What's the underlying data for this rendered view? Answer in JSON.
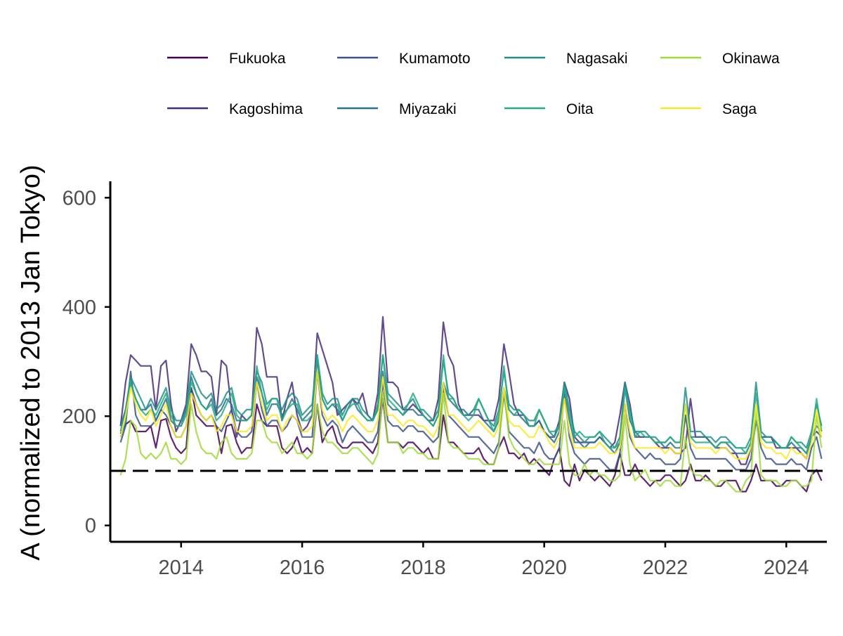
{
  "chart_data": {
    "type": "line",
    "title": "",
    "xlabel": "",
    "ylabel": "A (normalized to 2013 Jan Tokyo)",
    "x_start": "2013-01",
    "x_ticks": [
      2014,
      2016,
      2018,
      2020,
      2022,
      2024
    ],
    "y_ticks": [
      0,
      200,
      400,
      600
    ],
    "xlim": [
      2012.83,
      2024.67
    ],
    "ylim": [
      -30,
      630
    ],
    "reference_line": {
      "y": 100,
      "style": "dashed"
    },
    "legend_position": "top",
    "grid": false,
    "series": [
      {
        "name": "Fukuoka",
        "color": "#440154",
        "values": [
          168,
          185,
          192,
          172,
          172,
          172,
          182,
          142,
          192,
          195,
          162,
          142,
          132,
          142,
          252,
          202,
          192,
          182,
          182,
          182,
          132,
          182,
          185,
          152,
          132,
          142,
          142,
          222,
          192,
          182,
          182,
          182,
          142,
          132,
          142,
          162,
          132,
          142,
          132,
          222,
          152,
          172,
          182,
          152,
          142,
          142,
          152,
          152,
          152,
          142,
          132,
          152,
          232,
          152,
          152,
          152,
          142,
          152,
          152,
          142,
          132,
          142,
          122,
          122,
          202,
          152,
          152,
          142,
          132,
          132,
          132,
          142,
          122,
          112,
          112,
          142,
          162,
          132,
          132,
          122,
          132,
          112,
          122,
          112,
          102,
          92,
          122,
          142,
          82,
          72,
          112,
          82,
          102,
          92,
          82,
          92,
          82,
          72,
          92,
          132,
          92,
          92,
          112,
          92,
          82,
          72,
          82,
          82,
          92,
          92,
          82,
          72,
          82,
          112,
          82,
          82,
          92,
          82,
          72,
          72,
          82,
          82,
          82,
          62,
          62,
          82,
          112,
          82,
          82,
          82,
          72,
          72,
          82,
          82,
          82,
          72,
          62,
          92,
          102,
          82
        ]
      },
      {
        "name": "Kagoshima",
        "color": "#472D7B",
        "values": [
          182,
          262,
          312,
          302,
          292,
          292,
          292,
          212,
          292,
          302,
          222,
          172,
          192,
          222,
          332,
          312,
          282,
          282,
          272,
          202,
          302,
          292,
          212,
          162,
          202,
          192,
          202,
          362,
          332,
          272,
          272,
          272,
          192,
          232,
          262,
          202,
          172,
          182,
          202,
          352,
          322,
          292,
          262,
          202,
          212,
          222,
          232,
          222,
          242,
          202,
          192,
          242,
          382,
          262,
          262,
          252,
          212,
          212,
          222,
          212,
          202,
          192,
          192,
          232,
          372,
          312,
          292,
          222,
          202,
          202,
          202,
          202,
          192,
          192,
          192,
          232,
          332,
          282,
          222,
          202,
          202,
          182,
          182,
          192,
          172,
          162,
          162,
          192,
          262,
          232,
          162,
          152,
          152,
          152,
          152,
          162,
          152,
          142,
          152,
          202,
          262,
          222,
          162,
          162,
          162,
          162,
          152,
          142,
          142,
          142,
          132,
          132,
          142,
          232,
          162,
          162,
          162,
          152,
          142,
          142,
          142,
          132,
          132,
          112,
          112,
          142,
          192,
          162,
          162,
          162,
          142,
          142,
          142,
          142,
          142,
          132,
          122,
          162,
          172,
          162
        ]
      },
      {
        "name": "Kumamoto",
        "color": "#3B528B",
        "values": [
          152,
          182,
          282,
          202,
          182,
          182,
          182,
          192,
          212,
          202,
          182,
          162,
          162,
          182,
          252,
          222,
          202,
          192,
          202,
          182,
          172,
          192,
          212,
          172,
          162,
          162,
          172,
          262,
          212,
          182,
          192,
          192,
          172,
          182,
          202,
          192,
          162,
          162,
          162,
          282,
          202,
          182,
          192,
          182,
          152,
          172,
          182,
          172,
          162,
          152,
          152,
          172,
          262,
          192,
          182,
          182,
          172,
          182,
          182,
          172,
          172,
          162,
          152,
          162,
          252,
          202,
          192,
          182,
          172,
          162,
          162,
          162,
          152,
          142,
          132,
          152,
          242,
          172,
          162,
          152,
          142,
          142,
          132,
          152,
          132,
          122,
          122,
          142,
          242,
          162,
          132,
          122,
          112,
          122,
          122,
          122,
          112,
          102,
          102,
          132,
          222,
          162,
          142,
          132,
          122,
          132,
          122,
          122,
          112,
          112,
          112,
          122,
          202,
          142,
          122,
          122,
          122,
          122,
          122,
          122,
          122,
          112,
          102,
          102,
          102,
          122,
          192,
          142,
          122,
          122,
          112,
          112,
          112,
          122,
          112,
          112,
          102,
          142,
          162,
          122
        ]
      },
      {
        "name": "Miyazaki",
        "color": "#2C728E",
        "values": [
          182,
          212,
          262,
          232,
          212,
          212,
          222,
          192,
          212,
          232,
          192,
          182,
          182,
          212,
          272,
          242,
          222,
          212,
          232,
          202,
          212,
          232,
          222,
          192,
          192,
          192,
          202,
          272,
          242,
          202,
          222,
          222,
          202,
          212,
          232,
          212,
          192,
          202,
          212,
          302,
          232,
          212,
          222,
          212,
          192,
          212,
          232,
          212,
          202,
          192,
          192,
          212,
          282,
          222,
          212,
          212,
          202,
          212,
          212,
          202,
          202,
          192,
          182,
          202,
          262,
          232,
          222,
          212,
          212,
          202,
          212,
          212,
          192,
          182,
          172,
          192,
          252,
          212,
          202,
          202,
          192,
          182,
          182,
          192,
          172,
          162,
          152,
          172,
          252,
          192,
          152,
          152,
          142,
          152,
          152,
          162,
          152,
          142,
          132,
          152,
          252,
          192,
          172,
          162,
          162,
          162,
          152,
          152,
          142,
          152,
          142,
          142,
          202,
          162,
          162,
          162,
          162,
          152,
          142,
          152,
          152,
          142,
          132,
          132,
          132,
          152,
          192,
          162,
          162,
          162,
          152,
          142,
          142,
          152,
          142,
          142,
          132,
          162,
          182,
          172
        ]
      },
      {
        "name": "Nagasaki",
        "color": "#21908C",
        "values": [
          172,
          212,
          272,
          252,
          232,
          212,
          232,
          212,
          232,
          252,
          212,
          192,
          192,
          212,
          282,
          262,
          242,
          232,
          242,
          212,
          222,
          242,
          252,
          212,
          202,
          212,
          212,
          282,
          262,
          222,
          232,
          232,
          212,
          232,
          242,
          232,
          202,
          212,
          222,
          312,
          242,
          222,
          232,
          232,
          202,
          222,
          232,
          232,
          212,
          202,
          192,
          222,
          312,
          242,
          232,
          222,
          212,
          222,
          232,
          212,
          212,
          202,
          192,
          212,
          302,
          242,
          232,
          212,
          202,
          202,
          212,
          232,
          212,
          192,
          182,
          212,
          282,
          222,
          212,
          212,
          202,
          192,
          192,
          212,
          192,
          172,
          162,
          182,
          262,
          212,
          172,
          162,
          152,
          162,
          162,
          172,
          162,
          152,
          142,
          162,
          262,
          212,
          172,
          172,
          172,
          162,
          162,
          152,
          152,
          162,
          152,
          152,
          252,
          172,
          172,
          172,
          162,
          162,
          152,
          162,
          162,
          152,
          142,
          142,
          142,
          162,
          262,
          172,
          162,
          162,
          152,
          142,
          142,
          162,
          152,
          152,
          142,
          172,
          222,
          182
        ]
      },
      {
        "name": "Oita",
        "color": "#27AD81",
        "values": [
          162,
          192,
          262,
          232,
          212,
          202,
          212,
          202,
          222,
          242,
          202,
          182,
          182,
          202,
          262,
          242,
          222,
          212,
          222,
          192,
          202,
          222,
          242,
          202,
          192,
          192,
          202,
          292,
          242,
          212,
          232,
          232,
          192,
          212,
          222,
          222,
          192,
          192,
          202,
          312,
          232,
          212,
          222,
          222,
          192,
          212,
          222,
          222,
          202,
          192,
          192,
          212,
          312,
          232,
          222,
          212,
          202,
          222,
          242,
          222,
          202,
          192,
          182,
          202,
          312,
          232,
          232,
          212,
          202,
          192,
          202,
          232,
          212,
          192,
          172,
          202,
          292,
          212,
          202,
          212,
          202,
          182,
          182,
          212,
          192,
          172,
          172,
          182,
          252,
          202,
          162,
          172,
          162,
          162,
          162,
          172,
          152,
          142,
          142,
          152,
          252,
          202,
          162,
          172,
          162,
          162,
          152,
          152,
          152,
          162,
          152,
          152,
          222,
          162,
          152,
          152,
          152,
          152,
          142,
          152,
          152,
          152,
          142,
          142,
          132,
          152,
          242,
          162,
          152,
          152,
          152,
          142,
          142,
          162,
          152,
          142,
          132,
          162,
          232,
          172
        ]
      },
      {
        "name": "Okinawa",
        "color": "#A0DA39",
        "values": [
          92,
          122,
          192,
          182,
          132,
          122,
          132,
          122,
          132,
          152,
          122,
          122,
          112,
          122,
          222,
          172,
          142,
          132,
          132,
          122,
          152,
          162,
          132,
          122,
          122,
          122,
          132,
          192,
          192,
          162,
          152,
          152,
          132,
          142,
          152,
          132,
          132,
          122,
          132,
          222,
          172,
          152,
          152,
          142,
          132,
          132,
          142,
          142,
          132,
          122,
          112,
          132,
          242,
          152,
          152,
          152,
          132,
          142,
          142,
          132,
          132,
          122,
          122,
          122,
          242,
          152,
          142,
          142,
          132,
          122,
          122,
          122,
          112,
          112,
          112,
          142,
          252,
          162,
          142,
          132,
          122,
          112,
          112,
          122,
          112,
          112,
          112,
          112,
          192,
          112,
          92,
          92,
          112,
          92,
          102,
          92,
          92,
          82,
          82,
          92,
          202,
          112,
          82,
          92,
          102,
          82,
          82,
          72,
          82,
          82,
          72,
          72,
          162,
          102,
          92,
          92,
          82,
          82,
          72,
          82,
          82,
          72,
          62,
          62,
          82,
          92,
          212,
          92,
          82,
          82,
          82,
          72,
          72,
          82,
          82,
          72,
          72,
          82,
          202,
          142
        ]
      },
      {
        "name": "Saga",
        "color": "#FDE725",
        "values": [
          162,
          202,
          252,
          222,
          202,
          192,
          212,
          182,
          202,
          222,
          182,
          162,
          162,
          182,
          242,
          222,
          202,
          192,
          202,
          172,
          182,
          202,
          202,
          172,
          172,
          172,
          182,
          262,
          222,
          192,
          202,
          202,
          172,
          192,
          202,
          192,
          172,
          172,
          182,
          282,
          212,
          192,
          202,
          192,
          172,
          192,
          202,
          192,
          182,
          172,
          172,
          192,
          272,
          202,
          202,
          192,
          182,
          192,
          192,
          182,
          182,
          172,
          162,
          182,
          262,
          202,
          202,
          192,
          182,
          172,
          182,
          192,
          182,
          172,
          162,
          182,
          252,
          192,
          182,
          182,
          172,
          162,
          162,
          182,
          172,
          152,
          142,
          162,
          232,
          172,
          142,
          142,
          142,
          142,
          142,
          152,
          142,
          132,
          132,
          142,
          222,
          172,
          142,
          142,
          142,
          142,
          142,
          142,
          132,
          142,
          132,
          132,
          222,
          152,
          142,
          142,
          142,
          142,
          132,
          142,
          142,
          132,
          122,
          122,
          122,
          142,
          222,
          152,
          142,
          142,
          132,
          132,
          122,
          142,
          132,
          132,
          122,
          152,
          212,
          162
        ]
      }
    ]
  }
}
